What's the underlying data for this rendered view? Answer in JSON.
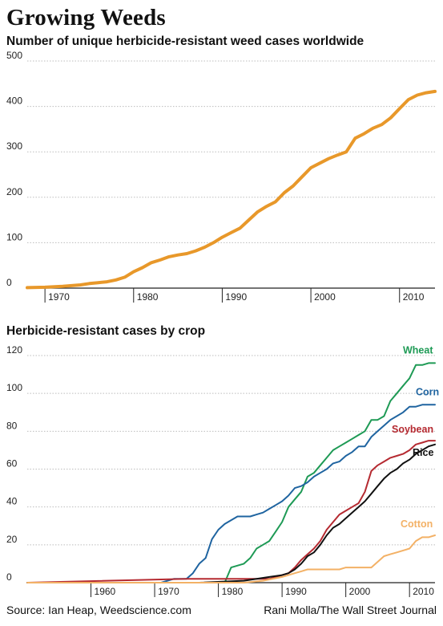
{
  "header": {
    "title": "Growing Weeds",
    "subtitle": "Number of unique herbicide-resistant weed cases worldwide",
    "subtitle2": "Herbicide-resistant cases by crop"
  },
  "footer": {
    "source": "Source: Ian Heap, Weedscience.com",
    "credit": "Rani Molla/The Wall Street Journal"
  },
  "chart_data": [
    {
      "type": "line",
      "title": "Number of unique herbicide-resistant weed cases worldwide",
      "xlim": [
        1968,
        2014
      ],
      "ylim": [
        0,
        500
      ],
      "xticks": [
        1970,
        1980,
        1990,
        2000,
        2010
      ],
      "yticks": [
        0,
        100,
        200,
        300,
        400,
        500
      ],
      "grid": true,
      "series": [
        {
          "color": "#e8982a",
          "x": [
            1968,
            1970,
            1972,
            1974,
            1975,
            1976,
            1977,
            1978,
            1979,
            1980,
            1981,
            1982,
            1983,
            1984,
            1985,
            1986,
            1987,
            1988,
            1989,
            1990,
            1991,
            1992,
            1993,
            1994,
            1995,
            1996,
            1997,
            1998,
            1999,
            2000,
            2001,
            2002,
            2003,
            2004,
            2005,
            2006,
            2007,
            2008,
            2009,
            2010,
            2011,
            2012,
            2013,
            2014
          ],
          "y": [
            1,
            2,
            4,
            7,
            10,
            12,
            14,
            18,
            24,
            36,
            45,
            56,
            62,
            69,
            73,
            76,
            82,
            90,
            100,
            112,
            122,
            132,
            150,
            168,
            180,
            190,
            210,
            225,
            245,
            265,
            275,
            285,
            293,
            300,
            330,
            340,
            352,
            360,
            375,
            395,
            415,
            425,
            430,
            433
          ]
        }
      ]
    },
    {
      "type": "line",
      "title": "Herbicide-resistant cases by crop",
      "xlim": [
        1950,
        2014
      ],
      "ylim": [
        0,
        120
      ],
      "xticks": [
        1960,
        1970,
        1980,
        1990,
        2000,
        2010
      ],
      "yticks": [
        0,
        20,
        40,
        60,
        80,
        100,
        120
      ],
      "grid": true,
      "series": [
        {
          "name": "Wheat",
          "color": "#1e9a55",
          "x": [
            1950,
            1981,
            1982,
            1984,
            1985,
            1986,
            1987,
            1988,
            1989,
            1990,
            1991,
            1992,
            1993,
            1994,
            1995,
            1996,
            1997,
            1998,
            1999,
            2000,
            2001,
            2002,
            2003,
            2004,
            2005,
            2006,
            2007,
            2008,
            2009,
            2010,
            2011,
            2012,
            2013,
            2014
          ],
          "y": [
            0,
            0,
            8,
            10,
            13,
            18,
            20,
            22,
            27,
            32,
            40,
            44,
            48,
            56,
            58,
            62,
            66,
            70,
            72,
            74,
            76,
            78,
            80,
            86,
            86,
            88,
            96,
            100,
            104,
            108,
            115,
            115,
            116,
            116
          ]
        },
        {
          "name": "Corn",
          "color": "#1f64a0",
          "x": [
            1950,
            1971,
            1973,
            1975,
            1976,
            1977,
            1978,
            1979,
            1980,
            1981,
            1983,
            1985,
            1986,
            1987,
            1988,
            1989,
            1990,
            1991,
            1992,
            1993,
            1994,
            1995,
            1996,
            1997,
            1998,
            1999,
            2000,
            2001,
            2002,
            2003,
            2004,
            2005,
            2006,
            2007,
            2008,
            2009,
            2010,
            2011,
            2012,
            2013,
            2014
          ],
          "y": [
            0,
            0,
            2,
            2,
            5,
            10,
            13,
            23,
            28,
            31,
            35,
            35,
            36,
            37,
            39,
            41,
            43,
            46,
            50,
            51,
            53,
            56,
            58,
            60,
            63,
            64,
            67,
            69,
            72,
            72,
            77,
            80,
            83,
            86,
            88,
            90,
            93,
            93,
            94,
            94,
            94
          ],
          "_comment": "approximate"
        },
        {
          "name": "Soybean",
          "color": "#b52a31",
          "x": [
            1950,
            1975,
            1988,
            1989,
            1990,
            1991,
            1992,
            1993,
            1994,
            1995,
            1996,
            1997,
            1998,
            1999,
            2000,
            2001,
            2002,
            2003,
            2004,
            2005,
            2006,
            2007,
            2008,
            2009,
            2010,
            2011,
            2012,
            2013,
            2014
          ],
          "y": [
            0,
            2,
            2,
            3,
            4,
            5,
            8,
            12,
            15,
            18,
            22,
            28,
            32,
            36,
            38,
            40,
            42,
            48,
            59,
            62,
            64,
            66,
            67,
            68,
            70,
            73,
            74,
            75,
            75
          ]
        },
        {
          "name": "Rice",
          "color": "#111111",
          "x": [
            1950,
            1977,
            1984,
            1986,
            1988,
            1990,
            1991,
            1992,
            1993,
            1994,
            1995,
            1996,
            1997,
            1998,
            1999,
            2000,
            2001,
            2002,
            2003,
            2004,
            2005,
            2006,
            2007,
            2008,
            2009,
            2010,
            2011,
            2012,
            2013,
            2014
          ],
          "y": [
            0,
            0,
            1,
            2,
            3,
            4,
            5,
            7,
            10,
            14,
            16,
            20,
            25,
            29,
            31,
            34,
            37,
            40,
            43,
            47,
            51,
            55,
            58,
            60,
            63,
            65,
            68,
            70,
            72,
            73
          ]
        },
        {
          "name": "Cotton",
          "color": "#f3b166",
          "x": [
            1950,
            1984,
            1987,
            1990,
            1992,
            1993,
            1994,
            1995,
            1999,
            2000,
            2002,
            2004,
            2005,
            2006,
            2007,
            2008,
            2009,
            2010,
            2011,
            2012,
            2013,
            2014
          ],
          "y": [
            0,
            0,
            1,
            3,
            5,
            6,
            7,
            7,
            7,
            8,
            8,
            8,
            11,
            14,
            15,
            16,
            17,
            18,
            22,
            24,
            24,
            25
          ]
        }
      ]
    }
  ]
}
